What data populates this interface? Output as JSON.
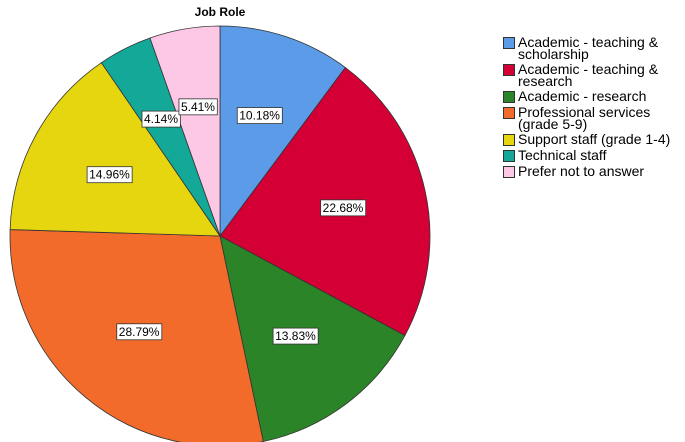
{
  "chart_data": {
    "type": "pie",
    "title": "Job Role",
    "categories": [
      "Academic - teaching & scholarship",
      "Academic - teaching & research",
      "Academic - research",
      "Professional services (grade 5-9)",
      "Support staff (grade 1-4)",
      "Technical staff",
      "Prefer not to answer"
    ],
    "values": [
      10.18,
      22.68,
      13.83,
      28.79,
      14.96,
      4.14,
      5.41
    ],
    "value_labels": [
      "10.18%",
      "22.68%",
      "13.83%",
      "28.79%",
      "14.96%",
      "4.14%",
      "5.41%"
    ],
    "colors": [
      "#5b9be8",
      "#d40035",
      "#2b8427",
      "#f26b2b",
      "#e6d60f",
      "#13a898",
      "#fcc8e6"
    ],
    "legend": "right"
  }
}
